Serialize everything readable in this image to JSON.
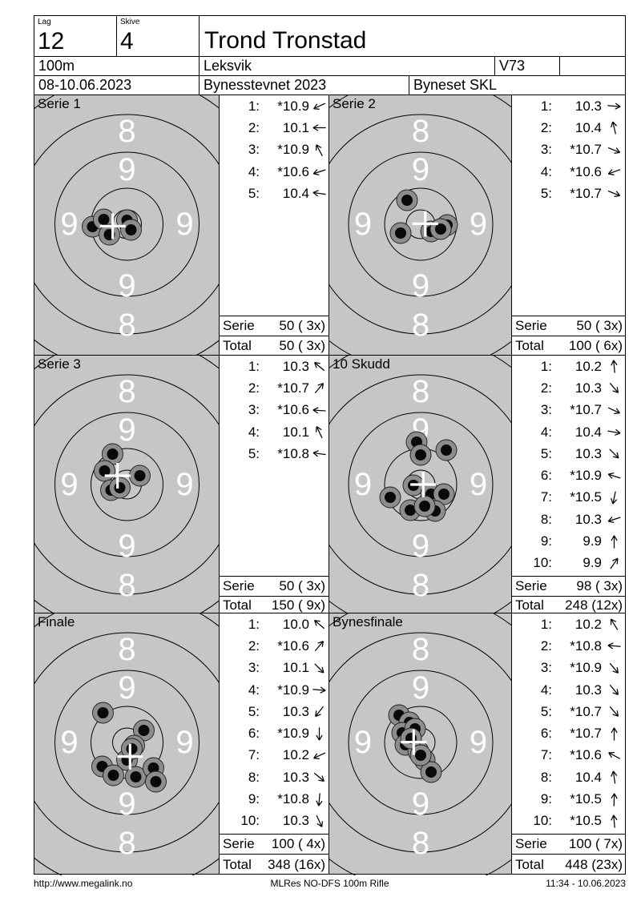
{
  "header": {
    "lag_label": "Lag",
    "lag_value": "12",
    "skive_label": "Skive",
    "skive_value": "4",
    "shooter_name": "Trond Tronstad",
    "distance": "100m",
    "club": "Leksvik",
    "class": "V73",
    "date_range": "08-10.06.2023",
    "event_name": "Bynesstevnet 2023",
    "organizer": "Byneset SKL"
  },
  "footer": {
    "url": "http://www.megalink.no",
    "program": "MLRes NO-DFS 100m Rifle",
    "printed": "11:34 - 10.06.2023"
  },
  "target": {
    "ring_labels": [
      "8",
      "9",
      "9",
      "9",
      "9",
      "8"
    ],
    "background_color": "#c6c6c6",
    "ring_line_color": "#000000",
    "ring_label_color": "#ffffff",
    "hole_outer_color": "#8d8d8d",
    "hole_inner_color": "#0a0a0a",
    "cross_color": "#ffffff"
  },
  "panels": [
    {
      "title": "Serie 1",
      "shots": [
        {
          "no": "1:",
          "value": "*10.9",
          "dir": 205
        },
        {
          "no": "2:",
          "value": "10.1",
          "dir": 180
        },
        {
          "no": "3:",
          "value": "*10.9",
          "dir": 118
        },
        {
          "no": "4:",
          "value": "*10.6",
          "dir": 198
        },
        {
          "no": "5:",
          "value": "10.4",
          "dir": 172
        }
      ],
      "serie_label": "Serie",
      "serie_value": "50 ( 3x)",
      "total_label": "Total",
      "total_value": "50 ( 3x)",
      "holes": [
        [
          -43,
          3
        ],
        [
          -29,
          -6
        ],
        [
          0,
          -5
        ],
        [
          -22,
          13
        ],
        [
          5,
          7
        ]
      ]
    },
    {
      "title": "Serie 2",
      "shots": [
        {
          "no": "1:",
          "value": "10.3",
          "dir": 355
        },
        {
          "no": "2:",
          "value": "10.4",
          "dir": 103
        },
        {
          "no": "3:",
          "value": "*10.7",
          "dir": 338
        },
        {
          "no": "4:",
          "value": "*10.6",
          "dir": 200
        },
        {
          "no": "5:",
          "value": "*10.7",
          "dir": 338
        }
      ],
      "serie_label": "Serie",
      "serie_value": "50 ( 3x)",
      "total_label": "Total",
      "total_value": "100 ( 6x)",
      "holes": [
        [
          -17,
          -30
        ],
        [
          -25,
          11
        ],
        [
          13,
          9
        ],
        [
          33,
          1
        ],
        [
          25,
          6
        ]
      ]
    },
    {
      "title": "Serie 3",
      "shots": [
        {
          "no": "1:",
          "value": "10.3",
          "dir": 140
        },
        {
          "no": "2:",
          "value": "*10.7",
          "dir": 50
        },
        {
          "no": "3:",
          "value": "*10.6",
          "dir": 176
        },
        {
          "no": "4:",
          "value": "10.1",
          "dir": 115
        },
        {
          "no": "5:",
          "value": "*10.8",
          "dir": 172
        }
      ],
      "serie_label": "Serie",
      "serie_value": "50 ( 3x)",
      "total_label": "Total",
      "total_value": "150 ( 9x)",
      "holes": [
        [
          -18,
          -38
        ],
        [
          -28,
          -17
        ],
        [
          16,
          -11
        ],
        [
          -20,
          7
        ],
        [
          -9,
          4
        ]
      ]
    },
    {
      "title": "10 Skudd",
      "shots": [
        {
          "no": "1:",
          "value": "10.2",
          "dir": 95
        },
        {
          "no": "2:",
          "value": "10.3",
          "dir": 310
        },
        {
          "no": "3:",
          "value": "*10.7",
          "dir": 335
        },
        {
          "no": "4:",
          "value": "10.4",
          "dir": 350
        },
        {
          "no": "5:",
          "value": "10.3",
          "dir": 315
        },
        {
          "no": "6:",
          "value": "*10.9",
          "dir": 162
        },
        {
          "no": "7:",
          "value": "*10.5",
          "dir": 258
        },
        {
          "no": "8:",
          "value": "10.3",
          "dir": 198
        },
        {
          "no": "9:",
          "value": "9.9",
          "dir": 90
        },
        {
          "no": "10:",
          "value": "9.9",
          "dir": 55
        }
      ],
      "serie_label": "Serie",
      "serie_value": "98 ( 3x)",
      "total_label": "Total",
      "total_value": "248 (12x)",
      "holes": [
        [
          -5,
          -53
        ],
        [
          0,
          -37
        ],
        [
          32,
          -43
        ],
        [
          -9,
          1
        ],
        [
          -38,
          16
        ],
        [
          -13,
          32
        ],
        [
          13,
          12
        ],
        [
          29,
          12
        ],
        [
          18,
          33
        ],
        [
          5,
          27
        ]
      ]
    },
    {
      "title": "Finale",
      "shots": [
        {
          "no": "1:",
          "value": "10.0",
          "dir": 140
        },
        {
          "no": "2:",
          "value": "*10.6",
          "dir": 50
        },
        {
          "no": "3:",
          "value": "10.1",
          "dir": 315
        },
        {
          "no": "4:",
          "value": "*10.9",
          "dir": 355
        },
        {
          "no": "5:",
          "value": "10.3",
          "dir": 232
        },
        {
          "no": "6:",
          "value": "*10.9",
          "dir": 270
        },
        {
          "no": "7:",
          "value": "10.2",
          "dir": 205
        },
        {
          "no": "8:",
          "value": "10.3",
          "dir": 320
        },
        {
          "no": "9:",
          "value": "*10.8",
          "dir": 265
        },
        {
          "no": "10:",
          "value": "10.3",
          "dir": 295
        }
      ],
      "serie_label": "Serie",
      "serie_value": "100 ( 4x)",
      "total_label": "Total",
      "total_value": "348 (16x)",
      "holes": [
        [
          -30,
          -37
        ],
        [
          21,
          -15
        ],
        [
          9,
          4
        ],
        [
          0,
          22
        ],
        [
          -31,
          30
        ],
        [
          -17,
          41
        ],
        [
          11,
          43
        ],
        [
          33,
          32
        ],
        [
          36,
          49
        ],
        [
          6,
          8
        ]
      ]
    },
    {
      "title": "Bynesfinale",
      "shots": [
        {
          "no": "1:",
          "value": "10.2",
          "dir": 122
        },
        {
          "no": "2:",
          "value": "*10.8",
          "dir": 175
        },
        {
          "no": "3:",
          "value": "*10.9",
          "dir": 310
        },
        {
          "no": "4:",
          "value": "10.3",
          "dir": 310
        },
        {
          "no": "5:",
          "value": "*10.7",
          "dir": 310
        },
        {
          "no": "6:",
          "value": "*10.7",
          "dir": 90
        },
        {
          "no": "7:",
          "value": "*10.6",
          "dir": 152
        },
        {
          "no": "8:",
          "value": "10.4",
          "dir": 98
        },
        {
          "no": "9:",
          "value": "*10.5",
          "dir": 88
        },
        {
          "no": "10:",
          "value": "*10.5",
          "dir": 95
        }
      ],
      "serie_label": "Serie",
      "serie_value": "100 ( 7x)",
      "total_label": "Total",
      "total_value": "448 (23x)",
      "holes": [
        [
          -27,
          -34
        ],
        [
          -14,
          -25
        ],
        [
          -23,
          -12
        ],
        [
          -19,
          3
        ],
        [
          -3,
          11
        ],
        [
          5,
          22
        ],
        [
          13,
          37
        ],
        [
          -7,
          -17
        ],
        [
          -12,
          -5
        ],
        [
          0,
          16
        ]
      ]
    }
  ]
}
